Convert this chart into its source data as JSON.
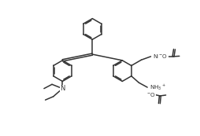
{
  "bg": "#ffffff",
  "lc": "#333333",
  "lw": 1.1,
  "fs": 5.5,
  "xlim": [
    0,
    10.5
  ],
  "ylim": [
    0.5,
    7.5
  ],
  "ring_r": 0.55,
  "dbl_off": 0.06
}
